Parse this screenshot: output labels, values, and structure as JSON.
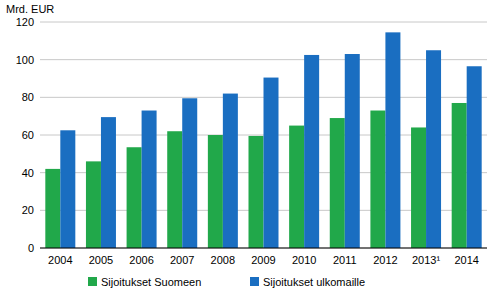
{
  "chart_data": {
    "type": "bar",
    "y_label": "Mrd. EUR",
    "categories": [
      "2004",
      "2005",
      "2006",
      "2007",
      "2008",
      "2009",
      "2010",
      "2011",
      "2012",
      "2013¹",
      "2014"
    ],
    "series": [
      {
        "name": "Sijoitukset Suomeen",
        "color": "#21a84a",
        "values": [
          42,
          46,
          53.5,
          62,
          60,
          59.5,
          65,
          69,
          73,
          64,
          77
        ]
      },
      {
        "name": "Sijoitukset ulkomaille",
        "color": "#1a6ec1",
        "values": [
          62.5,
          69.5,
          73,
          79.5,
          82,
          90.5,
          102.5,
          103,
          114.5,
          105,
          96.5
        ]
      }
    ],
    "ylim": [
      0,
      120
    ],
    "yticks": [
      0,
      20,
      40,
      60,
      80,
      100,
      120
    ],
    "grid": true,
    "legend": "bottom"
  }
}
